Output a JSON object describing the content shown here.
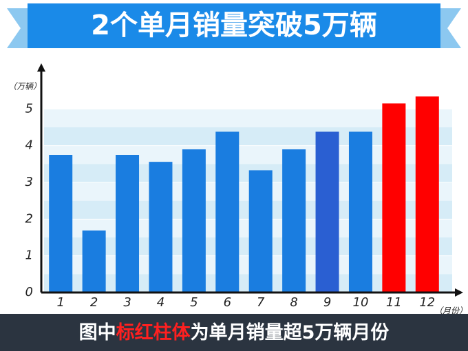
{
  "chart_data": {
    "type": "bar",
    "title": "2个单月销量突破5万辆",
    "y_label": "（万辆）",
    "x_label": "（月份）",
    "caption": [
      "图中",
      "标红柱体",
      "为单月销量超5万辆月份"
    ],
    "categories": [
      "1",
      "2",
      "3",
      "4",
      "5",
      "6",
      "7",
      "8",
      "9",
      "10",
      "11",
      "12"
    ],
    "values": [
      3.75,
      1.69,
      3.75,
      3.56,
      3.9,
      4.38,
      3.33,
      3.9,
      4.38,
      4.38,
      5.15,
      5.34
    ],
    "colors": [
      "#1a7de0",
      "#1a7de0",
      "#1a7de0",
      "#1a7de0",
      "#1a7de0",
      "#1a7de0",
      "#1a7de0",
      "#1a7de0",
      "#2a5fd2",
      "#1a7de0",
      "#ff0000",
      "#ff0000"
    ],
    "ylim": [
      0,
      6
    ],
    "yticks": [
      0,
      1,
      2,
      3,
      4,
      5
    ],
    "grid": true
  }
}
